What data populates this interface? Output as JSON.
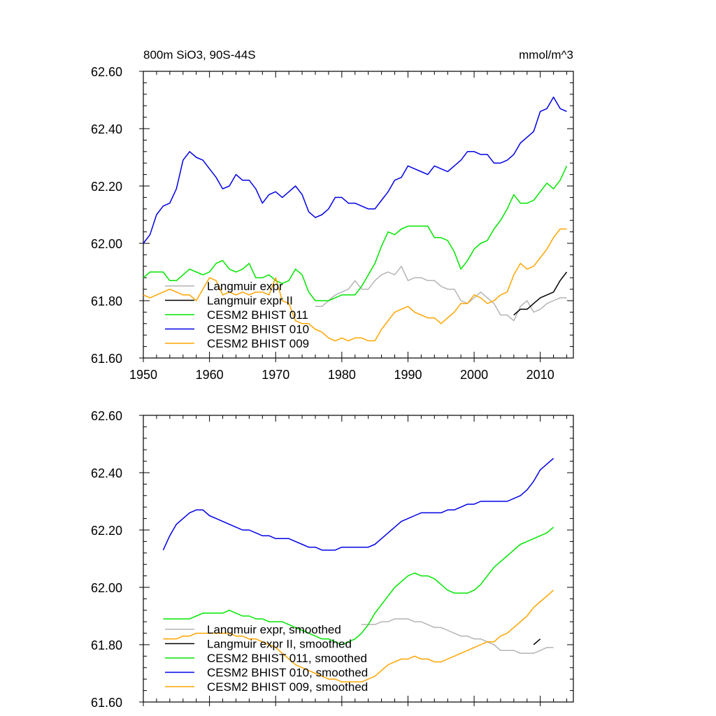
{
  "chart_data": [
    {
      "type": "line",
      "title_left": "800m SiO3, 90S-44S",
      "title_right": "mmol/m^3",
      "xlim": [
        1950,
        2015
      ],
      "ylim": [
        61.6,
        62.6
      ],
      "x_ticks": [
        "1950",
        "1960",
        "1970",
        "1980",
        "1990",
        "2000",
        "2010"
      ],
      "y_ticks": [
        "62.60",
        "62.40",
        "62.20",
        "62.00",
        "61.80",
        "61.60"
      ],
      "legend_position": "bottom-left",
      "series": [
        {
          "name": "Langmuir expr",
          "color": "#b4b4b4",
          "x": [
            1976,
            1977,
            1978,
            1979,
            1980,
            1981,
            1982,
            1983,
            1984,
            1985,
            1986,
            1987,
            1988,
            1989,
            1990,
            1991,
            1992,
            1993,
            1994,
            1995,
            1996,
            1997,
            1998,
            1999,
            2000,
            2001,
            2002,
            2003,
            2004,
            2005,
            2006,
            2007,
            2008,
            2009,
            2010,
            2011,
            2012,
            2013,
            2014
          ],
          "values": [
            61.78,
            61.78,
            61.8,
            61.82,
            61.83,
            61.84,
            61.87,
            61.84,
            61.84,
            61.87,
            61.89,
            61.9,
            61.89,
            61.92,
            61.87,
            61.88,
            61.88,
            61.87,
            61.87,
            61.85,
            61.84,
            61.84,
            61.8,
            61.79,
            61.81,
            61.83,
            61.81,
            61.79,
            61.75,
            61.75,
            61.73,
            61.78,
            61.8,
            61.76,
            61.77,
            61.79,
            61.8,
            61.81,
            61.81
          ]
        },
        {
          "name": "Langmuir expr II",
          "color": "#000000",
          "x": [
            2006,
            2007,
            2008,
            2009,
            2010,
            2011,
            2012,
            2013,
            2014
          ],
          "values": [
            61.75,
            61.77,
            61.77,
            61.79,
            61.81,
            61.82,
            61.83,
            61.87,
            61.9
          ]
        },
        {
          "name": "CESM2 BHIST 011",
          "color": "#00e600",
          "x": [
            1950,
            1951,
            1952,
            1953,
            1954,
            1955,
            1956,
            1957,
            1958,
            1959,
            1960,
            1961,
            1962,
            1963,
            1964,
            1965,
            1966,
            1967,
            1968,
            1969,
            1970,
            1971,
            1972,
            1973,
            1974,
            1975,
            1976,
            1977,
            1978,
            1979,
            1980,
            1981,
            1982,
            1983,
            1984,
            1985,
            1986,
            1987,
            1988,
            1989,
            1990,
            1991,
            1992,
            1993,
            1994,
            1995,
            1996,
            1997,
            1998,
            1999,
            2000,
            2001,
            2002,
            2003,
            2004,
            2005,
            2006,
            2007,
            2008,
            2009,
            2010,
            2011,
            2012,
            2013,
            2014
          ],
          "values": [
            61.88,
            61.9,
            61.9,
            61.9,
            61.87,
            61.87,
            61.89,
            61.91,
            61.9,
            61.89,
            61.9,
            61.93,
            61.94,
            61.91,
            61.9,
            61.91,
            61.93,
            61.88,
            61.88,
            61.89,
            61.87,
            61.86,
            61.87,
            61.91,
            61.89,
            61.83,
            61.8,
            61.8,
            61.8,
            61.81,
            61.82,
            61.82,
            61.82,
            61.85,
            61.89,
            61.93,
            61.99,
            62.04,
            62.03,
            62.05,
            62.06,
            62.06,
            62.06,
            62.06,
            62.02,
            62.02,
            62.01,
            61.97,
            61.91,
            61.94,
            61.98,
            62.0,
            62.01,
            62.05,
            62.08,
            62.12,
            62.17,
            62.14,
            62.14,
            62.15,
            62.18,
            62.21,
            62.19,
            62.22,
            62.27
          ]
        },
        {
          "name": "CESM2 BHIST 010",
          "color": "#0000e6",
          "x": [
            1950,
            1951,
            1952,
            1953,
            1954,
            1955,
            1956,
            1957,
            1958,
            1959,
            1960,
            1961,
            1962,
            1963,
            1964,
            1965,
            1966,
            1967,
            1968,
            1969,
            1970,
            1971,
            1972,
            1973,
            1974,
            1975,
            1976,
            1977,
            1978,
            1979,
            1980,
            1981,
            1982,
            1983,
            1984,
            1985,
            1986,
            1987,
            1988,
            1989,
            1990,
            1991,
            1992,
            1993,
            1994,
            1995,
            1996,
            1997,
            1998,
            1999,
            2000,
            2001,
            2002,
            2003,
            2004,
            2005,
            2006,
            2007,
            2008,
            2009,
            2010,
            2011,
            2012,
            2013,
            2014
          ],
          "values": [
            62.0,
            62.03,
            62.1,
            62.13,
            62.14,
            62.19,
            62.29,
            62.32,
            62.3,
            62.29,
            62.26,
            62.23,
            62.19,
            62.2,
            62.24,
            62.22,
            62.22,
            62.19,
            62.14,
            62.17,
            62.18,
            62.16,
            62.18,
            62.2,
            62.17,
            62.11,
            62.09,
            62.1,
            62.12,
            62.16,
            62.16,
            62.14,
            62.14,
            62.13,
            62.12,
            62.12,
            62.15,
            62.18,
            62.22,
            62.23,
            62.27,
            62.26,
            62.25,
            62.24,
            62.27,
            62.26,
            62.25,
            62.27,
            62.29,
            62.32,
            62.32,
            62.31,
            62.31,
            62.28,
            62.28,
            62.29,
            62.31,
            62.35,
            62.37,
            62.39,
            62.46,
            62.47,
            62.51,
            62.47,
            62.46
          ]
        },
        {
          "name": "CESM2 BHIST 009",
          "color": "#ffa500",
          "x": [
            1950,
            1951,
            1952,
            1953,
            1954,
            1955,
            1956,
            1957,
            1958,
            1959,
            1960,
            1961,
            1962,
            1963,
            1964,
            1965,
            1966,
            1967,
            1968,
            1969,
            1970,
            1971,
            1972,
            1973,
            1974,
            1975,
            1976,
            1977,
            1978,
            1979,
            1980,
            1981,
            1982,
            1983,
            1984,
            1985,
            1986,
            1987,
            1988,
            1989,
            1990,
            1991,
            1992,
            1993,
            1994,
            1995,
            1996,
            1997,
            1998,
            1999,
            2000,
            2001,
            2002,
            2003,
            2004,
            2005,
            2006,
            2007,
            2008,
            2009,
            2010,
            2011,
            2012,
            2013,
            2014
          ],
          "values": [
            61.82,
            61.81,
            61.82,
            61.83,
            61.84,
            61.83,
            61.82,
            61.82,
            61.8,
            61.84,
            61.88,
            61.87,
            61.82,
            61.83,
            61.82,
            61.83,
            61.82,
            61.83,
            61.83,
            61.82,
            61.88,
            61.8,
            61.79,
            61.73,
            61.72,
            61.72,
            61.7,
            61.69,
            61.67,
            61.66,
            61.67,
            61.66,
            61.67,
            61.67,
            61.66,
            61.66,
            61.7,
            61.73,
            61.76,
            61.77,
            61.78,
            61.76,
            61.75,
            61.74,
            61.74,
            61.72,
            61.74,
            61.76,
            61.79,
            61.79,
            61.82,
            61.81,
            61.79,
            61.8,
            61.82,
            61.83,
            61.89,
            61.93,
            61.91,
            61.92,
            61.95,
            61.98,
            62.02,
            62.05,
            62.05
          ]
        }
      ]
    },
    {
      "type": "line",
      "xlim": [
        1950,
        2015
      ],
      "ylim": [
        61.6,
        62.6
      ],
      "y_ticks": [
        "62.60",
        "62.40",
        "62.20",
        "62.00",
        "61.80",
        "61.60"
      ],
      "legend_position": "bottom-left",
      "series": [
        {
          "name": "Langmuir expr, smoothed",
          "color": "#b4b4b4",
          "x": [
            1983,
            1984,
            1985,
            1986,
            1987,
            1988,
            1989,
            1990,
            1991,
            1992,
            1993,
            1994,
            1995,
            1996,
            1997,
            1998,
            1999,
            2000,
            2001,
            2002,
            2003,
            2004,
            2005,
            2006,
            2007,
            2008,
            2009,
            2010,
            2011,
            2012
          ],
          "values": [
            61.87,
            61.87,
            61.87,
            61.88,
            61.88,
            61.89,
            61.89,
            61.89,
            61.88,
            61.88,
            61.87,
            61.86,
            61.86,
            61.85,
            61.84,
            61.83,
            61.83,
            61.82,
            61.82,
            61.81,
            61.8,
            61.78,
            61.78,
            61.78,
            61.77,
            61.77,
            61.77,
            61.78,
            61.79,
            61.79
          ]
        },
        {
          "name": "Langmuir expr II, smoothed",
          "color": "#000000",
          "x": [
            2009,
            2010
          ],
          "values": [
            61.8,
            61.82
          ]
        },
        {
          "name": "CESM2 BHIST 011, smoothed",
          "color": "#00e600",
          "x": [
            1953,
            1954,
            1955,
            1956,
            1957,
            1958,
            1959,
            1960,
            1961,
            1962,
            1963,
            1964,
            1965,
            1966,
            1967,
            1968,
            1969,
            1970,
            1971,
            1972,
            1973,
            1974,
            1975,
            1976,
            1977,
            1978,
            1979,
            1980,
            1981,
            1982,
            1983,
            1984,
            1985,
            1986,
            1987,
            1988,
            1989,
            1990,
            1991,
            1992,
            1993,
            1994,
            1995,
            1996,
            1997,
            1998,
            1999,
            2000,
            2001,
            2002,
            2003,
            2004,
            2005,
            2006,
            2007,
            2008,
            2009,
            2010,
            2011,
            2012
          ],
          "values": [
            61.89,
            61.89,
            61.89,
            61.89,
            61.89,
            61.9,
            61.91,
            61.91,
            61.91,
            61.91,
            61.92,
            61.91,
            61.9,
            61.9,
            61.89,
            61.89,
            61.88,
            61.88,
            61.88,
            61.87,
            61.86,
            61.85,
            61.84,
            61.83,
            61.82,
            61.82,
            61.81,
            61.8,
            61.81,
            61.82,
            61.84,
            61.87,
            61.91,
            61.94,
            61.97,
            62.0,
            62.02,
            62.04,
            62.05,
            62.04,
            62.04,
            62.03,
            62.01,
            61.99,
            61.98,
            61.98,
            61.98,
            61.99,
            62.01,
            62.04,
            62.07,
            62.09,
            62.11,
            62.13,
            62.15,
            62.16,
            62.17,
            62.18,
            62.19,
            62.21
          ]
        },
        {
          "name": "CESM2 BHIST 010, smoothed",
          "color": "#0000e6",
          "x": [
            1953,
            1954,
            1955,
            1956,
            1957,
            1958,
            1959,
            1960,
            1961,
            1962,
            1963,
            1964,
            1965,
            1966,
            1967,
            1968,
            1969,
            1970,
            1971,
            1972,
            1973,
            1974,
            1975,
            1976,
            1977,
            1978,
            1979,
            1980,
            1981,
            1982,
            1983,
            1984,
            1985,
            1986,
            1987,
            1988,
            1989,
            1990,
            1991,
            1992,
            1993,
            1994,
            1995,
            1996,
            1997,
            1998,
            1999,
            2000,
            2001,
            2002,
            2003,
            2004,
            2005,
            2006,
            2007,
            2008,
            2009,
            2010,
            2011,
            2012
          ],
          "values": [
            62.13,
            62.18,
            62.22,
            62.24,
            62.26,
            62.27,
            62.27,
            62.25,
            62.24,
            62.23,
            62.22,
            62.21,
            62.2,
            62.2,
            62.19,
            62.18,
            62.18,
            62.17,
            62.17,
            62.17,
            62.16,
            62.15,
            62.14,
            62.14,
            62.13,
            62.13,
            62.13,
            62.14,
            62.14,
            62.14,
            62.14,
            62.14,
            62.15,
            62.17,
            62.19,
            62.21,
            62.23,
            62.24,
            62.25,
            62.26,
            62.26,
            62.26,
            62.26,
            62.27,
            62.27,
            62.28,
            62.29,
            62.29,
            62.3,
            62.3,
            62.3,
            62.3,
            62.3,
            62.31,
            62.32,
            62.34,
            62.37,
            62.41,
            62.43,
            62.45
          ]
        },
        {
          "name": "CESM2 BHIST 009, smoothed",
          "color": "#ffa500",
          "x": [
            1953,
            1954,
            1955,
            1956,
            1957,
            1958,
            1959,
            1960,
            1961,
            1962,
            1963,
            1964,
            1965,
            1966,
            1967,
            1968,
            1969,
            1970,
            1971,
            1972,
            1973,
            1974,
            1975,
            1976,
            1977,
            1978,
            1979,
            1980,
            1981,
            1982,
            1983,
            1984,
            1985,
            1986,
            1987,
            1988,
            1989,
            1990,
            1991,
            1992,
            1993,
            1994,
            1995,
            1996,
            1997,
            1998,
            1999,
            2000,
            2001,
            2002,
            2003,
            2004,
            2005,
            2006,
            2007,
            2008,
            2009,
            2010,
            2011,
            2012
          ],
          "values": [
            61.82,
            61.82,
            61.82,
            61.83,
            61.83,
            61.84,
            61.84,
            61.84,
            61.84,
            61.84,
            61.84,
            61.83,
            61.83,
            61.82,
            61.82,
            61.81,
            61.8,
            61.79,
            61.77,
            61.75,
            61.73,
            61.72,
            61.71,
            61.7,
            61.69,
            61.68,
            61.68,
            61.67,
            61.67,
            61.67,
            61.67,
            61.68,
            61.69,
            61.71,
            61.73,
            61.74,
            61.75,
            61.75,
            61.76,
            61.75,
            61.75,
            61.74,
            61.74,
            61.75,
            61.76,
            61.77,
            61.78,
            61.79,
            61.8,
            61.81,
            61.81,
            61.83,
            61.84,
            61.86,
            61.88,
            61.9,
            61.93,
            61.95,
            61.97,
            61.99
          ]
        }
      ]
    }
  ]
}
